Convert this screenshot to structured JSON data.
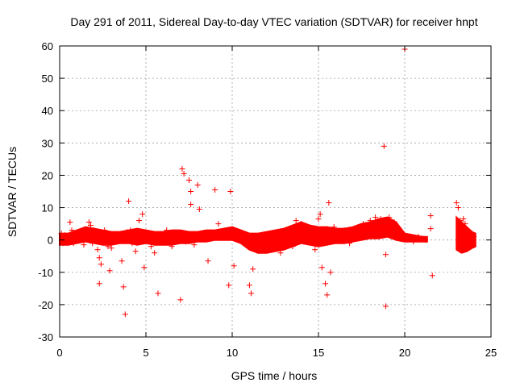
{
  "chart_data": {
    "type": "scatter",
    "title": "Day 291 of 2011, Sidereal Day-to-day VTEC variation (SDTVAR) for receiver hnpt",
    "xlabel": "GPS time / hours",
    "ylabel": "SDTVAR / TECUs",
    "xlim": [
      0,
      25
    ],
    "ylim": [
      -30,
      60
    ],
    "x_ticks": [
      0,
      5,
      10,
      15,
      20,
      25
    ],
    "y_ticks": [
      -30,
      -20,
      -10,
      0,
      10,
      20,
      30,
      40,
      50,
      60
    ],
    "x_tick_labels": [
      "0",
      "5",
      "10",
      "15",
      "20",
      "25"
    ],
    "y_tick_labels": [
      "-30",
      "-20",
      "-10",
      "0",
      "10",
      "20",
      "30",
      "40",
      "50",
      "60"
    ],
    "grid": true,
    "marker": "+",
    "series_color": "#ff0000",
    "series": [
      {
        "name": "SDTVAR",
        "points": [
          [
            0.1,
            2
          ],
          [
            0.2,
            -1
          ],
          [
            0.3,
            1.5
          ],
          [
            0.4,
            -0.5
          ],
          [
            0.5,
            1
          ],
          [
            0.6,
            5.5
          ],
          [
            0.7,
            3
          ],
          [
            0.8,
            -1
          ],
          [
            0.9,
            2
          ],
          [
            1.0,
            0.5
          ],
          [
            1.2,
            1
          ],
          [
            1.4,
            -1.5
          ],
          [
            1.6,
            2.5
          ],
          [
            1.7,
            5.5
          ],
          [
            1.8,
            4.5
          ],
          [
            1.9,
            -1
          ],
          [
            2.0,
            3
          ],
          [
            2.2,
            -3
          ],
          [
            2.3,
            -5.5
          ],
          [
            2.4,
            -7.5
          ],
          [
            2.3,
            -13.5
          ],
          [
            2.6,
            3
          ],
          [
            2.8,
            -2
          ],
          [
            2.9,
            -9.5
          ],
          [
            3.0,
            -2.5
          ],
          [
            3.2,
            1
          ],
          [
            3.4,
            -0.5
          ],
          [
            3.6,
            -6.5
          ],
          [
            3.7,
            -14.5
          ],
          [
            3.8,
            -23
          ],
          [
            3.9,
            2.5
          ],
          [
            4.0,
            12
          ],
          [
            4.1,
            3
          ],
          [
            4.2,
            -1
          ],
          [
            4.4,
            -3.5
          ],
          [
            4.6,
            6
          ],
          [
            4.8,
            8
          ],
          [
            4.9,
            -8.5
          ],
          [
            5.0,
            1
          ],
          [
            5.3,
            -2
          ],
          [
            5.5,
            -4
          ],
          [
            5.7,
            -16.5
          ],
          [
            6.0,
            1
          ],
          [
            6.2,
            3
          ],
          [
            6.5,
            -2
          ],
          [
            6.8,
            0.5
          ],
          [
            7.0,
            -18.5
          ],
          [
            7.1,
            22
          ],
          [
            7.2,
            20.5
          ],
          [
            7.3,
            -0.5
          ],
          [
            7.5,
            18.5
          ],
          [
            7.6,
            15
          ],
          [
            7.6,
            11
          ],
          [
            7.8,
            -1.5
          ],
          [
            8.0,
            17
          ],
          [
            8.1,
            9.5
          ],
          [
            8.4,
            1.5
          ],
          [
            8.6,
            -6.5
          ],
          [
            8.8,
            2
          ],
          [
            9.0,
            15.5
          ],
          [
            9.2,
            5
          ],
          [
            9.5,
            2
          ],
          [
            9.8,
            -14
          ],
          [
            9.9,
            15
          ],
          [
            10.1,
            -8
          ],
          [
            10.3,
            2.5
          ],
          [
            10.6,
            1
          ],
          [
            10.9,
            -1
          ],
          [
            11.0,
            -14
          ],
          [
            11.1,
            -16.5
          ],
          [
            11.2,
            -9
          ],
          [
            11.5,
            -3
          ],
          [
            12.0,
            -1.5
          ],
          [
            12.5,
            0.5
          ],
          [
            12.8,
            -4
          ],
          [
            13.0,
            2
          ],
          [
            13.3,
            3.5
          ],
          [
            13.5,
            -2
          ],
          [
            13.7,
            6
          ],
          [
            14.0,
            5
          ],
          [
            14.2,
            4
          ],
          [
            14.5,
            2.5
          ],
          [
            14.8,
            -3
          ],
          [
            15.0,
            6.5
          ],
          [
            15.1,
            8
          ],
          [
            15.2,
            -8.5
          ],
          [
            15.4,
            -13.5
          ],
          [
            15.5,
            -17
          ],
          [
            15.6,
            11.5
          ],
          [
            15.7,
            -10
          ],
          [
            15.9,
            4
          ],
          [
            16.2,
            2
          ],
          [
            16.5,
            3
          ],
          [
            16.8,
            -1
          ],
          [
            17.0,
            1.5
          ],
          [
            17.3,
            4
          ],
          [
            17.6,
            5
          ],
          [
            18.0,
            6
          ],
          [
            18.3,
            7
          ],
          [
            18.6,
            6.5
          ],
          [
            18.8,
            29
          ],
          [
            18.9,
            -20.5
          ],
          [
            18.9,
            -4.5
          ],
          [
            19.1,
            7
          ],
          [
            19.4,
            5.5
          ],
          [
            19.6,
            3
          ],
          [
            19.8,
            1.5
          ],
          [
            20.0,
            59
          ],
          [
            20.2,
            0.5
          ],
          [
            20.5,
            -0.5
          ],
          [
            20.8,
            1
          ],
          [
            21.0,
            0.5
          ],
          [
            21.2,
            0
          ],
          [
            21.5,
            7.5
          ],
          [
            21.5,
            3.5
          ],
          [
            21.6,
            -11
          ],
          [
            23.0,
            11.5
          ],
          [
            23.1,
            10
          ],
          [
            23.2,
            6
          ],
          [
            23.3,
            -1
          ],
          [
            23.4,
            6.5
          ],
          [
            23.5,
            5
          ],
          [
            23.6,
            1
          ],
          [
            23.7,
            -2
          ],
          [
            23.8,
            -1.5
          ],
          [
            23.9,
            0.5
          ],
          [
            24.0,
            1
          ]
        ],
        "band": {
          "x": [
            0,
            0.5,
            1,
            1.5,
            2,
            2.5,
            3,
            3.5,
            4,
            4.5,
            5,
            5.5,
            6,
            6.5,
            7,
            7.5,
            8,
            8.5,
            9,
            9.5,
            10,
            10.5,
            11,
            11.5,
            12,
            12.5,
            13,
            13.5,
            14,
            14.5,
            15,
            15.5,
            16,
            16.5,
            17,
            17.5,
            18,
            18.5,
            19,
            19.5,
            20,
            20.5,
            21,
            21.3
          ],
          "upper": [
            2,
            2,
            3,
            4,
            3.5,
            3,
            2.5,
            2.5,
            3,
            3.5,
            3,
            2.5,
            2.5,
            3,
            3,
            2.5,
            2.5,
            3,
            3,
            3.5,
            4,
            3,
            2,
            2,
            2.5,
            3,
            3.5,
            4.5,
            5.5,
            4.5,
            4,
            4,
            3.5,
            3.5,
            4,
            5,
            5.5,
            6.5,
            7,
            5.5,
            2,
            1.5,
            1,
            1
          ],
          "lower": [
            -1.5,
            -1.5,
            -1,
            -0.5,
            -1,
            -1.5,
            -1.5,
            -1,
            -1,
            -1.5,
            -1,
            -1.5,
            -1.5,
            -1.5,
            -1,
            -1,
            -0.5,
            -0.5,
            0,
            0,
            0,
            -1,
            -3,
            -4,
            -4,
            -3.5,
            -3,
            -2,
            -1,
            -1.5,
            -2,
            -1.5,
            -1,
            -1,
            -0.5,
            0,
            0.5,
            0.5,
            1,
            0,
            -0.5,
            -0.5,
            -0.5,
            -0.5
          ]
        },
        "band2": {
          "x": [
            23.0,
            23.3,
            23.6,
            23.9,
            24.1
          ],
          "upper": [
            7,
            5.5,
            4,
            2.5,
            2
          ],
          "lower": [
            -3,
            -4,
            -3.5,
            -2.5,
            -2
          ]
        }
      }
    ]
  }
}
